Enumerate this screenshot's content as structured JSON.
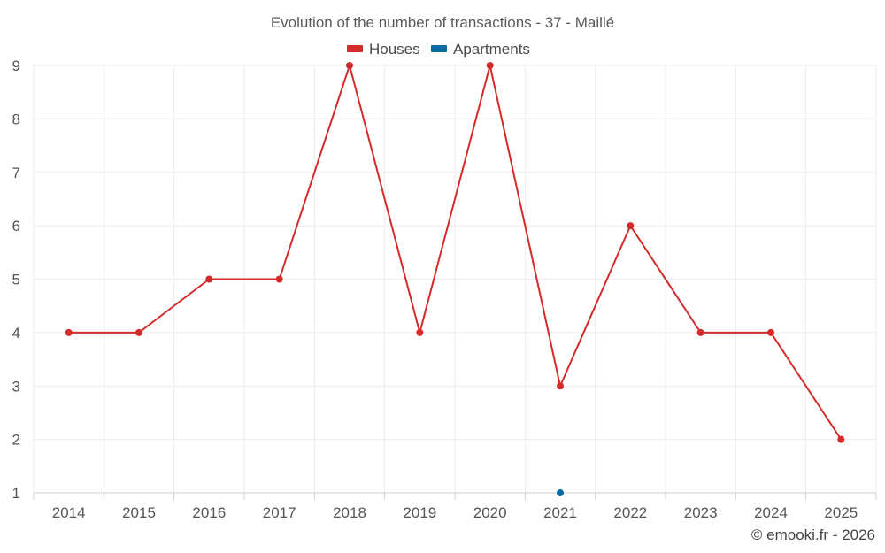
{
  "chart_data": {
    "type": "line",
    "title": "Evolution of the number of transactions - 37 - Maillé",
    "categories": [
      "2014",
      "2015",
      "2016",
      "2017",
      "2018",
      "2019",
      "2020",
      "2021",
      "2022",
      "2023",
      "2024",
      "2025"
    ],
    "series": [
      {
        "name": "Houses",
        "color": "#d42a2a",
        "values": [
          4,
          4,
          5,
          5,
          9,
          4,
          9,
          3,
          6,
          4,
          4,
          2
        ]
      },
      {
        "name": "Apartments",
        "color": "#0a6aa1",
        "values": [
          null,
          null,
          null,
          null,
          null,
          null,
          null,
          1,
          null,
          null,
          null,
          null
        ]
      }
    ],
    "yticks": [
      "1",
      "2",
      "3",
      "4",
      "5",
      "6",
      "7",
      "8",
      "9"
    ],
    "ylim": [
      1,
      9
    ],
    "xlabel": "",
    "ylabel": "",
    "legend_position": "top-center",
    "grid": true
  },
  "credit": "© emooki.fr - 2026"
}
